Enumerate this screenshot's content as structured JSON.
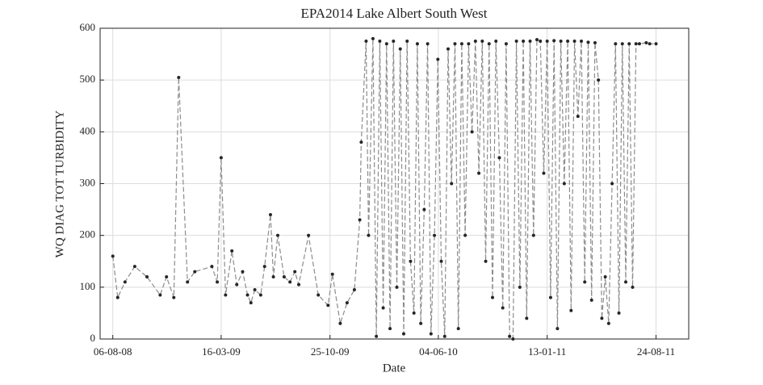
{
  "chart_data": {
    "type": "line",
    "title": "EPA2014 Lake Albert South West",
    "xlabel": "Date",
    "ylabel": "WQ DIAG TOT TURBIDITY",
    "xlim": [
      "2008-07-11",
      "2011-10-30"
    ],
    "xticks": [
      {
        "value": "2008-08-06",
        "label": "06-08-08"
      },
      {
        "value": "2009-03-16",
        "label": "16-03-09"
      },
      {
        "value": "2009-10-25",
        "label": "25-10-09"
      },
      {
        "value": "2010-06-04",
        "label": "04-06-10"
      },
      {
        "value": "2011-01-13",
        "label": "13-01-11"
      },
      {
        "value": "2011-08-24",
        "label": "24-08-11"
      }
    ],
    "ylim": [
      0,
      600
    ],
    "yticks": [
      0,
      100,
      200,
      300,
      400,
      500,
      600
    ],
    "grid": true,
    "series": [
      {
        "line_color": "#8c8c8c",
        "marker_color": "#262626",
        "x": [
          "2008-08-06",
          "2008-08-16",
          "2008-08-31",
          "2008-09-20",
          "2008-10-15",
          "2008-11-11",
          "2008-11-24",
          "2008-12-09",
          "2008-12-19",
          "2009-01-06",
          "2009-01-21",
          "2009-02-25",
          "2009-03-08",
          "2009-03-16",
          "2009-03-25",
          "2009-04-07",
          "2009-04-17",
          "2009-04-29",
          "2009-05-09",
          "2009-05-16",
          "2009-05-24",
          "2009-06-05",
          "2009-06-13",
          "2009-06-25",
          "2009-07-01",
          "2009-07-10",
          "2009-07-23",
          "2009-08-04",
          "2009-08-14",
          "2009-08-22",
          "2009-09-11",
          "2009-10-01",
          "2009-10-21",
          "2009-10-30",
          "2009-11-15",
          "2009-11-29",
          "2009-12-14",
          "2009-12-25",
          "2009-12-28",
          "2010-01-07",
          "2010-01-12",
          "2010-01-21",
          "2010-01-28",
          "2010-02-04",
          "2010-02-11",
          "2010-02-18",
          "2010-02-25",
          "2010-03-04",
          "2010-03-11",
          "2010-03-18",
          "2010-03-25",
          "2010-04-01",
          "2010-04-08",
          "2010-04-15",
          "2010-04-22",
          "2010-04-29",
          "2010-05-06",
          "2010-05-13",
          "2010-05-20",
          "2010-05-27",
          "2010-06-03",
          "2010-06-10",
          "2010-06-17",
          "2010-06-24",
          "2010-07-01",
          "2010-07-08",
          "2010-07-15",
          "2010-07-22",
          "2010-07-29",
          "2010-08-05",
          "2010-08-12",
          "2010-08-19",
          "2010-08-26",
          "2010-09-02",
          "2010-09-09",
          "2010-09-16",
          "2010-09-23",
          "2010-09-30",
          "2010-10-07",
          "2010-10-14",
          "2010-10-21",
          "2010-10-28",
          "2010-11-04",
          "2010-11-11",
          "2010-11-18",
          "2010-11-25",
          "2010-12-02",
          "2010-12-09",
          "2010-12-16",
          "2010-12-23",
          "2010-12-30",
          "2011-01-06",
          "2011-01-13",
          "2011-01-20",
          "2011-01-27",
          "2011-02-03",
          "2011-02-10",
          "2011-02-17",
          "2011-02-24",
          "2011-03-03",
          "2011-03-10",
          "2011-03-17",
          "2011-03-24",
          "2011-03-31",
          "2011-04-07",
          "2011-04-14",
          "2011-04-21",
          "2011-04-28",
          "2011-05-05",
          "2011-05-12",
          "2011-05-19",
          "2011-05-26",
          "2011-06-02",
          "2011-06-09",
          "2011-06-16",
          "2011-06-23",
          "2011-06-30",
          "2011-07-07",
          "2011-07-14",
          "2011-07-21",
          "2011-08-04",
          "2011-08-11",
          "2011-08-24"
        ],
        "values": [
          160,
          80,
          110,
          140,
          120,
          85,
          120,
          80,
          505,
          110,
          130,
          140,
          110,
          350,
          85,
          170,
          105,
          130,
          85,
          70,
          95,
          85,
          140,
          240,
          120,
          200,
          120,
          110,
          130,
          105,
          200,
          85,
          65,
          125,
          30,
          70,
          95,
          230,
          380,
          575,
          200,
          580,
          5,
          575,
          60,
          570,
          20,
          575,
          100,
          560,
          10,
          575,
          150,
          50,
          570,
          30,
          250,
          570,
          10,
          200,
          540,
          150,
          5,
          560,
          300,
          570,
          20,
          570,
          200,
          570,
          400,
          575,
          320,
          575,
          150,
          570,
          80,
          575,
          350,
          60,
          570,
          5,
          0,
          575,
          100,
          575,
          40,
          575,
          200,
          578,
          575,
          320,
          575,
          80,
          576,
          20,
          575,
          300,
          575,
          55,
          575,
          430,
          575,
          110,
          573,
          75,
          572,
          500,
          40,
          120,
          30,
          300,
          570,
          50,
          570,
          110,
          570,
          100,
          570,
          570,
          572,
          570,
          570
        ]
      }
    ]
  }
}
